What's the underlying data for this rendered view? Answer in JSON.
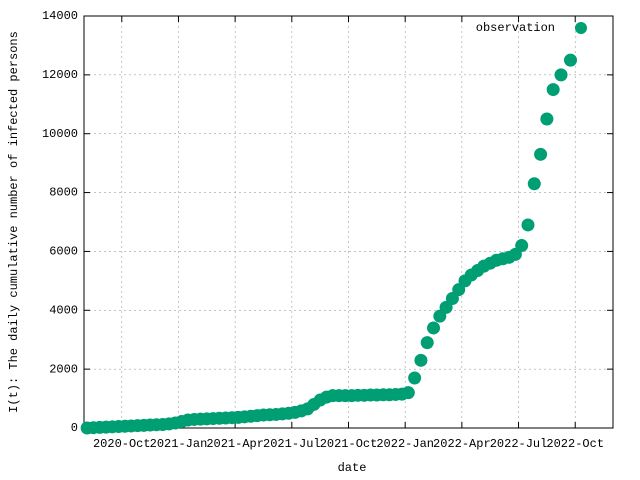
{
  "chart_data": {
    "type": "scatter",
    "xlabel": "date",
    "ylabel": "I(t): The daily cumulative number of infected persons",
    "xlim": [
      "2020-08",
      "2022-12"
    ],
    "xticks": [
      {
        "value": "2020-10",
        "label": "2020-Oct"
      },
      {
        "value": "2021-01",
        "label": "2021-Jan"
      },
      {
        "value": "2021-04",
        "label": "2021-Apr"
      },
      {
        "value": "2021-07",
        "label": "2021-Jul"
      },
      {
        "value": "2021-10",
        "label": "2021-Oct"
      },
      {
        "value": "2022-01",
        "label": "2022-Jan"
      },
      {
        "value": "2022-04",
        "label": "2022-Apr"
      },
      {
        "value": "2022-07",
        "label": "2022-Jul"
      },
      {
        "value": "2022-10",
        "label": "2022-Oct"
      }
    ],
    "ylim": [
      0,
      14000
    ],
    "yticks": [
      0,
      2000,
      4000,
      6000,
      8000,
      10000,
      12000,
      14000
    ],
    "grid": true,
    "legend": "top-right",
    "series": [
      {
        "name": "observation",
        "color": "#009e73",
        "x": [
          "2020-08",
          "2020-08",
          "2020-08",
          "2020-09",
          "2020-09",
          "2020-09",
          "2020-10",
          "2020-10",
          "2020-10",
          "2020-11",
          "2020-11",
          "2020-11",
          "2020-12",
          "2020-12",
          "2020-12",
          "2021-01",
          "2021-01",
          "2021-01",
          "2021-02",
          "2021-02",
          "2021-02",
          "2021-03",
          "2021-03",
          "2021-03",
          "2021-04",
          "2021-04",
          "2021-04",
          "2021-05",
          "2021-05",
          "2021-05",
          "2021-06",
          "2021-06",
          "2021-06",
          "2021-07",
          "2021-07",
          "2021-07",
          "2021-08",
          "2021-08",
          "2021-08",
          "2021-09",
          "2021-09",
          "2021-09",
          "2021-10",
          "2021-10",
          "2021-10",
          "2021-11",
          "2021-11",
          "2021-11",
          "2021-12",
          "2021-12",
          "2021-12",
          "2022-01",
          "2022-01",
          "2022-01",
          "2022-02",
          "2022-02",
          "2022-02",
          "2022-03",
          "2022-03",
          "2022-03",
          "2022-04",
          "2022-04",
          "2022-04",
          "2022-05",
          "2022-05",
          "2022-05",
          "2022-06",
          "2022-06",
          "2022-06",
          "2022-07",
          "2022-07",
          "2022-07",
          "2022-08",
          "2022-08",
          "2022-08",
          "2022-09",
          "2022-09"
        ],
        "values": [
          0,
          10,
          20,
          30,
          40,
          50,
          60,
          70,
          80,
          90,
          100,
          110,
          120,
          140,
          170,
          220,
          270,
          290,
          300,
          310,
          320,
          330,
          340,
          350,
          360,
          380,
          400,
          420,
          440,
          450,
          460,
          480,
          500,
          530,
          580,
          650,
          800,
          950,
          1050,
          1100,
          1100,
          1100,
          1100,
          1110,
          1110,
          1120,
          1120,
          1130,
          1130,
          1140,
          1150,
          1200,
          1700,
          2300,
          2900,
          3400,
          3800,
          4100,
          4400,
          4700,
          5000,
          5200,
          5350,
          5500,
          5600,
          5700,
          5750,
          5800,
          5900,
          6200,
          6900,
          8300,
          9300,
          10500,
          11500,
          12000,
          12500
        ]
      }
    ]
  }
}
